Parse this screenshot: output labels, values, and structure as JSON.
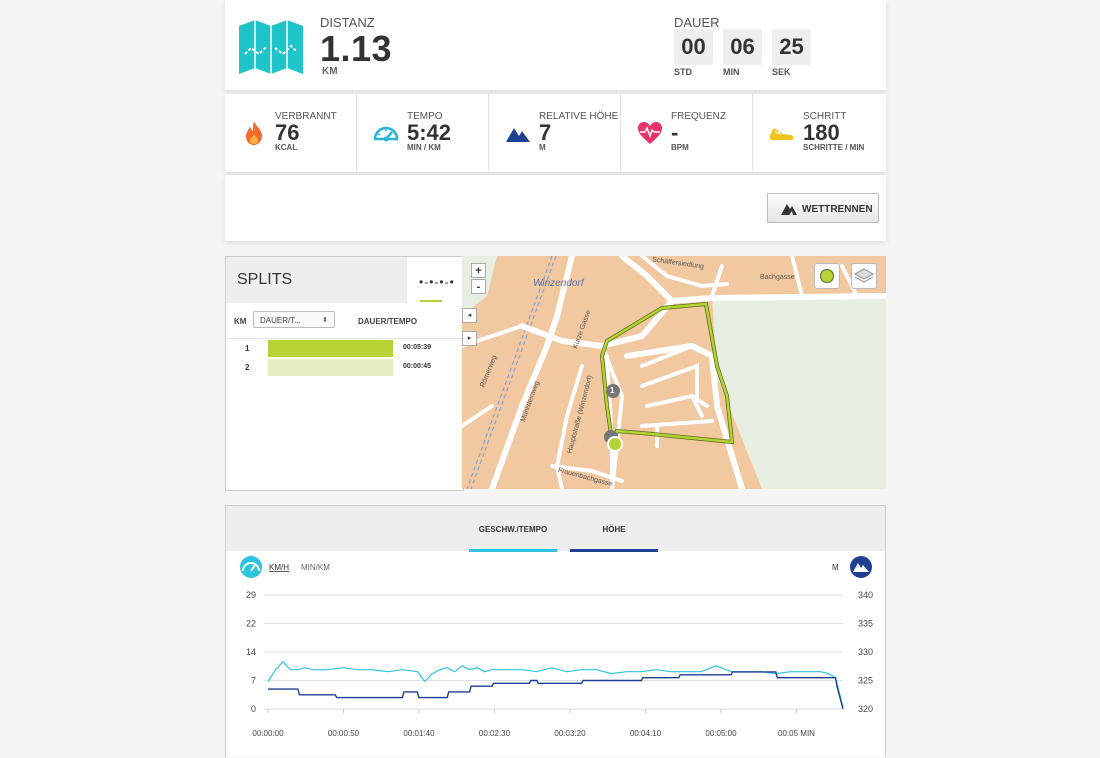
{
  "summary": {
    "distance_label": "DISTANZ",
    "distance_value": "1.13",
    "distance_unit": "KM",
    "duration_label": "DAUER",
    "duration": [
      {
        "value": "00",
        "unit": "STD"
      },
      {
        "value": "06",
        "unit": "MIN"
      },
      {
        "value": "25",
        "unit": "SEK"
      }
    ]
  },
  "metrics": [
    {
      "label": "VERBRANNT",
      "value": "76",
      "unit": "KCAL",
      "icon": "flame-icon",
      "color": "#f26a2e"
    },
    {
      "label": "TEMPO",
      "value": "5:42",
      "unit": "MIN / KM",
      "icon": "speedometer-icon",
      "color": "#26b5d8"
    },
    {
      "label": "RELATIVE HÖHE",
      "value": "7",
      "unit": "M",
      "icon": "mountain-icon",
      "color": "#1f3f91"
    },
    {
      "label": "FREQUENZ",
      "value": "-",
      "unit": "BPM",
      "icon": "heart-rate-icon",
      "color": "#e8336b"
    },
    {
      "label": "SCHRITT",
      "value": "180",
      "unit": "SCHRITTE / MIN",
      "icon": "shoe-icon",
      "color": "#f0c419"
    }
  ],
  "race_button": {
    "label": "WETTRENNEN",
    "icon": "race-flag-icon"
  },
  "splits": {
    "title": "SPLITS",
    "col_km": "KM",
    "select_value": "DAUER/T...",
    "col_time": "DAUER/TEMPO",
    "rows": [
      {
        "km": "1",
        "time": "00:05:39",
        "fraction": 1.0
      },
      {
        "km": "2",
        "time": "00:00:45",
        "fraction": 1.0
      }
    ]
  },
  "map": {
    "zoom_in": "+",
    "zoom_out": "-",
    "place_label": "Winzendorf",
    "street_labels": [
      "Schäffersiedlung",
      "Bachgasse",
      "Kurze Gasse",
      "Römerweg",
      "Mühlsteinweg",
      "Hauptstraße (Winzendorf)",
      "Frauenbachgasse"
    ],
    "marker_1": "1",
    "route_color": "#9bc93a",
    "base_color": "#f2c8a0"
  },
  "chart": {
    "tabs": [
      {
        "label": "GESCHW./TEMPO",
        "active": true
      },
      {
        "label": "HÖHE",
        "active": false
      }
    ],
    "unit_left_active": "KM/H",
    "unit_left_inactive": "MIN/KM",
    "unit_right": "M"
  },
  "chart_data": {
    "type": "line",
    "x_ticks": [
      "00:00:00",
      "00:00:50",
      "00:01:40",
      "00:02:30",
      "00:03:20",
      "00:04:10",
      "00:05:00",
      "00:05 MIN"
    ],
    "y_left_ticks": [
      29,
      22,
      14,
      7,
      0
    ],
    "y_right_ticks": [
      340,
      335,
      330,
      325,
      320
    ],
    "y_left_range": [
      0,
      29
    ],
    "y_right_range": [
      320,
      340
    ],
    "x_range_seconds": [
      0,
      385
    ],
    "grid": true,
    "series": [
      {
        "axis": "left",
        "color": "#2ec4e0",
        "x": [
          0,
          5,
          10,
          15,
          20,
          25,
          30,
          40,
          50,
          60,
          70,
          80,
          90,
          100,
          105,
          110,
          115,
          120,
          125,
          130,
          135,
          140,
          145,
          150,
          160,
          170,
          180,
          190,
          200,
          210,
          220,
          230,
          240,
          250,
          260,
          270,
          280,
          290,
          300,
          310,
          320,
          330,
          340,
          350,
          360,
          370,
          375,
          380,
          385
        ],
        "y": [
          7,
          10,
          12,
          10,
          10,
          10.5,
          10,
          10,
          10.5,
          10,
          10,
          9.5,
          10,
          9.5,
          7,
          9,
          10,
          10.5,
          9.5,
          11,
          10,
          10.5,
          9.5,
          10,
          10,
          10,
          9.5,
          10.5,
          9.5,
          10,
          10,
          9,
          9.5,
          9.5,
          10,
          9.5,
          9.5,
          9.5,
          11,
          9.5,
          9.5,
          9.5,
          9,
          9.5,
          9.5,
          9.5,
          9,
          8,
          0.5
        ]
      },
      {
        "axis": "right",
        "color": "#1f3f91",
        "x": [
          0,
          20,
          21,
          45,
          46,
          65,
          66,
          85,
          86,
          90,
          91,
          100,
          101,
          120,
          121,
          135,
          136,
          150,
          151,
          175,
          176,
          180,
          181,
          210,
          211,
          250,
          251,
          275,
          276,
          310,
          311,
          340,
          341,
          380,
          381,
          385
        ],
        "y": [
          323.5,
          323.5,
          322.5,
          322.5,
          322,
          322,
          322,
          322,
          322,
          322,
          323,
          323,
          322,
          322,
          323,
          323,
          324,
          324,
          324.5,
          324.5,
          325,
          325,
          324.5,
          324.5,
          325,
          325,
          325.5,
          325.5,
          326,
          326,
          326.5,
          326.5,
          325.5,
          325.5,
          324,
          320
        ]
      }
    ]
  }
}
